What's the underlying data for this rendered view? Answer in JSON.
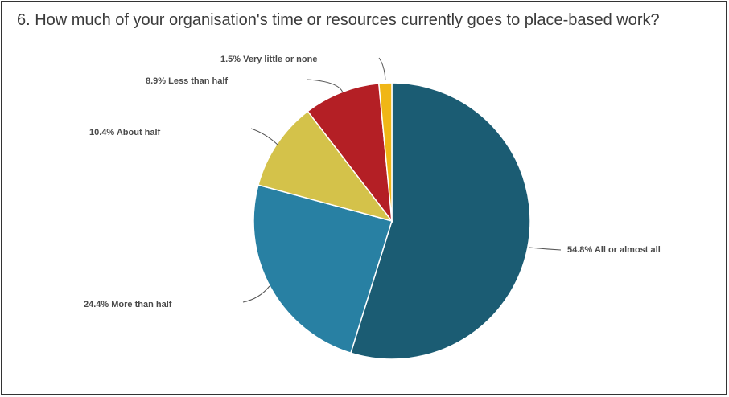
{
  "chart_data": {
    "type": "pie",
    "title": "6. How much of your organisation's time or resources currently goes to place-based work?",
    "slices": [
      {
        "label": "All or almost all",
        "value": 54.8,
        "display": "54.8% All or almost all",
        "color": "#1b5c73"
      },
      {
        "label": "More than half",
        "value": 24.4,
        "display": "24.4% More than half",
        "color": "#2880a3"
      },
      {
        "label": "About half",
        "value": 10.4,
        "display": "10.4% About half",
        "color": "#d4c24a"
      },
      {
        "label": "Less than half",
        "value": 8.9,
        "display": "8.9% Less than half",
        "color": "#b41f25"
      },
      {
        "label": "Very little or none",
        "value": 1.5,
        "display": "1.5% Very little or none",
        "color": "#f0b616"
      }
    ],
    "legend": "none"
  }
}
